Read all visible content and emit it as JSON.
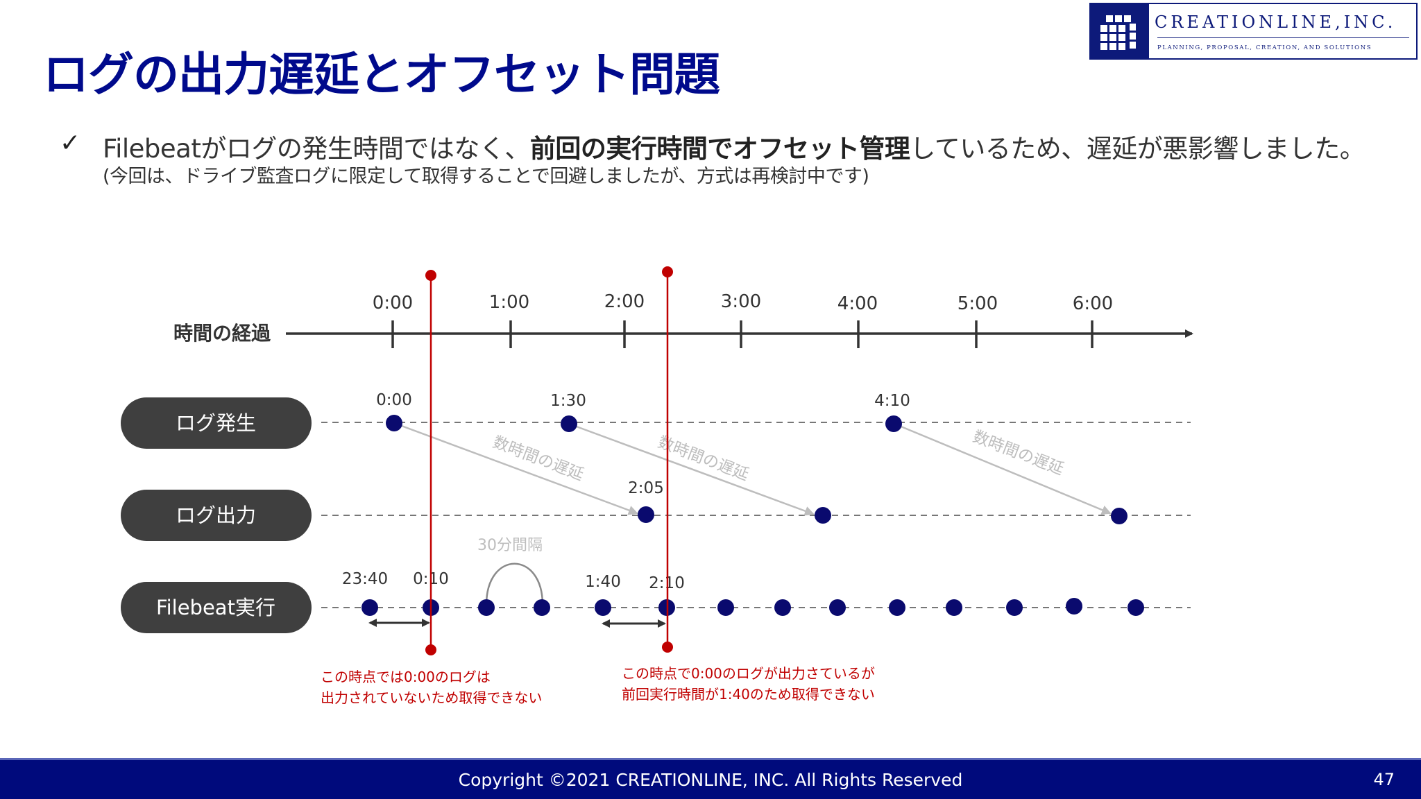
{
  "slide": {
    "title": "ログの出力遅延とオフセット問題",
    "bullet": {
      "prefix": "Filebeatがログの発生時間ではなく、",
      "bold1": "前回の実行時間で",
      "bold2": "オフセット管理",
      "suffix": "しているため、遅延が悪影響しました。"
    },
    "note": "(今回は、ドライブ監査ログに限定して取得することで回避しましたが、方式は再検討中です)"
  },
  "logo": {
    "name": "CREATIONLINE,INC.",
    "tagline": "PLANNING, PROPOSAL, CREATION, AND SOLUTIONS"
  },
  "diagram": {
    "colors": {
      "navy": "#0a0a6e",
      "red": "#c00000",
      "pill": "#3f3f3f",
      "gray": "#bdbdbd",
      "axis": "#333333"
    },
    "axis_label": "時間の経過",
    "axis_ticks": [
      "0:00",
      "1:00",
      "2:00",
      "3:00",
      "4:00",
      "5:00",
      "6:00"
    ],
    "rows": [
      {
        "label": "ログ発生"
      },
      {
        "label": "ログ出力"
      },
      {
        "label": "Filebeat実行"
      }
    ],
    "log_events": [
      {
        "label": "0:00"
      },
      {
        "label": "1:30"
      },
      {
        "label": "4:10"
      }
    ],
    "output_events": [
      {
        "label": "2:05"
      },
      {
        "label": ""
      },
      {
        "label": ""
      }
    ],
    "delay_label": "数時間の遅延",
    "run_labels": [
      "23:40",
      "0:10",
      "",
      "",
      "1:40",
      "2:10",
      "",
      "",
      "",
      "",
      "",
      "",
      "",
      ""
    ],
    "interval_label": "30分間隔",
    "annotations": [
      {
        "line1": "この時点では0:00のログは",
        "line2": "出力されていないため取得できない"
      },
      {
        "line1": "この時点で0:00のログが出力さているが",
        "line2": "前回実行時間が1:40のため取得できない"
      }
    ]
  },
  "footer": {
    "copyright": "Copyright ©2021 CREATIONLINE, INC. All Rights Reserved",
    "page": "47"
  }
}
